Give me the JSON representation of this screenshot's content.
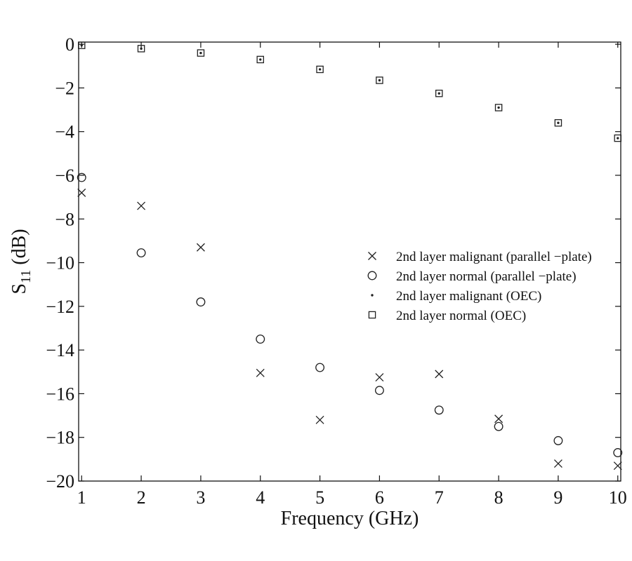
{
  "chart_data": {
    "type": "scatter",
    "title": "",
    "xlabel": "Frequency (GHz)",
    "ylabel": {
      "main": "S",
      "sub": "11",
      "suffix": " (dB)"
    },
    "xlim": [
      0.95,
      10.05
    ],
    "ylim": [
      -20,
      0.1
    ],
    "xticks": [
      1,
      2,
      3,
      4,
      5,
      6,
      7,
      8,
      9,
      10
    ],
    "yticks": [
      0,
      -2,
      -4,
      -6,
      -8,
      -10,
      -12,
      -14,
      -16,
      -18,
      -20
    ],
    "xtick_labels": [
      "1",
      "2",
      "3",
      "4",
      "5",
      "6",
      "7",
      "8",
      "9",
      "10"
    ],
    "ytick_labels": [
      "0",
      "−2",
      "−4",
      "−6",
      "−8",
      "−10",
      "−12",
      "−14",
      "−16",
      "−18",
      "−20"
    ],
    "grid": false,
    "legend_position": "right-center",
    "x": [
      1,
      2,
      3,
      4,
      5,
      6,
      7,
      8,
      9,
      10
    ],
    "series": [
      {
        "name": "2nd layer malignant (parallel −plate)",
        "marker": "x",
        "values": [
          -6.8,
          -7.4,
          -9.3,
          -15.05,
          -17.2,
          -15.25,
          -15.1,
          -17.15,
          -19.2,
          -19.3
        ]
      },
      {
        "name": "2nd layer normal (parallel −plate)",
        "marker": "circle",
        "values": [
          -6.1,
          -9.55,
          -11.8,
          -13.5,
          -14.8,
          -15.85,
          -16.75,
          -17.5,
          -18.15,
          -18.7
        ]
      },
      {
        "name": "2nd layer malignant (OEC)",
        "marker": "dot",
        "values": [
          -0.05,
          -0.2,
          -0.4,
          -0.7,
          -1.15,
          -1.65,
          -2.25,
          -2.9,
          -3.6,
          -4.3
        ]
      },
      {
        "name": "2nd layer normal (OEC)",
        "marker": "square",
        "values": [
          -0.05,
          -0.2,
          -0.4,
          -0.7,
          -1.15,
          -1.65,
          -2.25,
          -2.9,
          -3.6,
          -4.3
        ]
      }
    ],
    "colors": {
      "marker": "#222222",
      "axis": "#111111",
      "background": "#ffffff"
    }
  }
}
